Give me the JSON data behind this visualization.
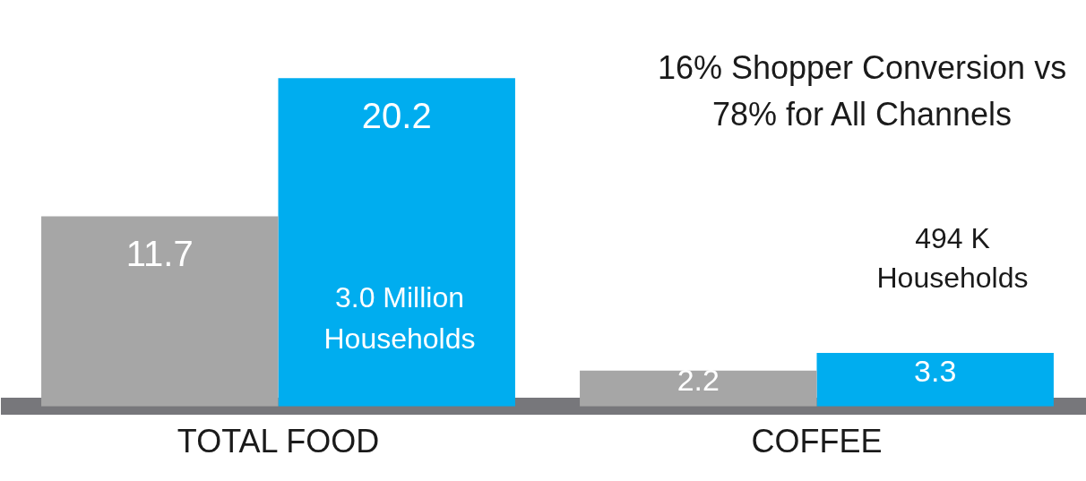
{
  "chart_data": {
    "type": "bar",
    "categories": [
      "TOTAL FOOD",
      "COFFEE"
    ],
    "series": [
      {
        "color": "#a6a6a6",
        "values": [
          11.7,
          2.2
        ]
      },
      {
        "color": "#00adef",
        "values": [
          20.2,
          3.3
        ]
      }
    ],
    "tick_labels": "x",
    "grid": false,
    "legend": false,
    "data_labels": true,
    "annotations": [
      "16% Shopper Conversion vs 78% for All Channels",
      "3.0 Million Households",
      "494 K Households"
    ]
  }
}
